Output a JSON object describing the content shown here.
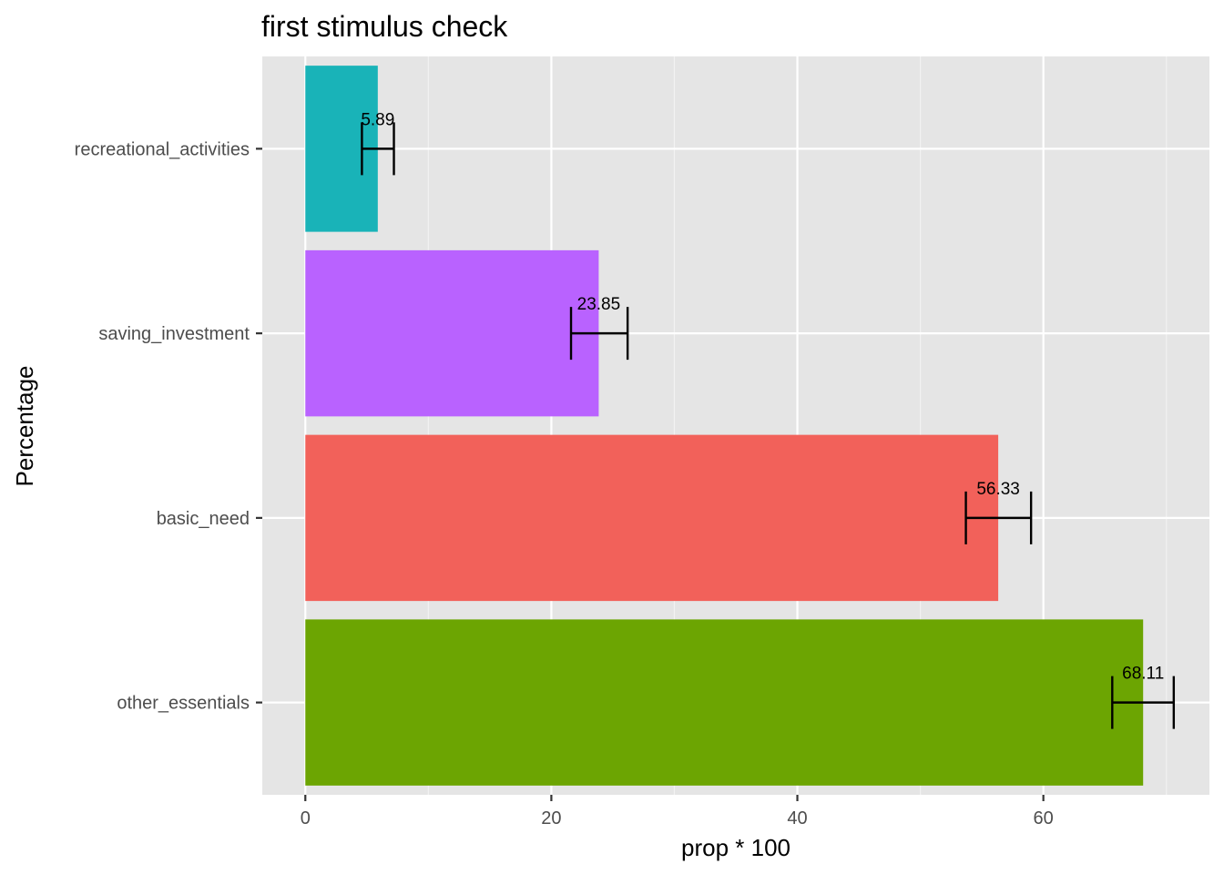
{
  "chart_data": {
    "type": "bar",
    "orientation": "horizontal",
    "title": "first stimulus check",
    "xlabel": "prop * 100",
    "ylabel": "Percentage",
    "categories": [
      "recreational_activities",
      "saving_investment",
      "basic_need",
      "other_essentials"
    ],
    "values": [
      5.89,
      23.85,
      56.33,
      68.11
    ],
    "value_labels": [
      "5.89",
      "23.85",
      "56.33",
      "68.11"
    ],
    "error_low": [
      4.6,
      21.6,
      53.7,
      65.6
    ],
    "error_high": [
      7.2,
      26.2,
      59.0,
      70.6
    ],
    "colors": [
      "#19B3B8",
      "#B962FF",
      "#F2615A",
      "#6CA502"
    ],
    "xlim": [
      -3.5,
      73.5
    ],
    "xticks": [
      0,
      20,
      40,
      60
    ],
    "xtick_labels": [
      "0",
      "20",
      "40",
      "60"
    ],
    "grid": true,
    "panel_background": "#E5E5E5",
    "legend": "none"
  }
}
